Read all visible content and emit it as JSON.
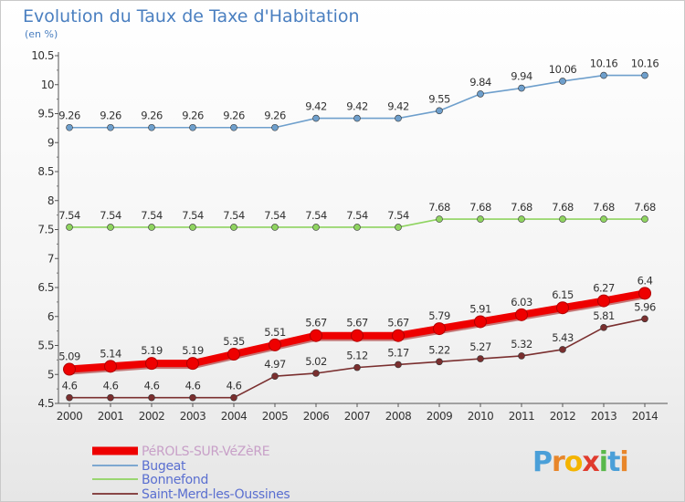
{
  "title": "Evolution du Taux de Taxe d'Habitation",
  "subtitle": "(en %)",
  "brand": {
    "letters": [
      "P",
      "r",
      "o",
      "x",
      "i",
      "t",
      "i"
    ],
    "colors": [
      "#4a9fd8",
      "#e8862a",
      "#f4b400",
      "#e03b2e",
      "#59b84a",
      "#4a9fd8",
      "#e8862a"
    ]
  },
  "chart_data": {
    "type": "line",
    "x": [
      "2000",
      "2001",
      "2002",
      "2003",
      "2004",
      "2005",
      "2006",
      "2007",
      "2008",
      "2009",
      "2010",
      "2011",
      "2012",
      "2013",
      "2014"
    ],
    "ylim": [
      4.5,
      10.5
    ],
    "yticks": [
      "4.5",
      "5",
      "5.5",
      "6",
      "6.5",
      "7",
      "7.5",
      "8",
      "8.5",
      "9",
      "9.5",
      "10",
      "10.5"
    ],
    "grid": false,
    "legend_position": "bottom-left",
    "series": [
      {
        "name": "PéROLS-SUR-VéZèRE",
        "color": "#ee0000",
        "values": [
          5.09,
          5.14,
          5.19,
          5.19,
          5.35,
          5.51,
          5.67,
          5.67,
          5.67,
          5.79,
          5.91,
          6.03,
          6.15,
          6.27,
          6.4
        ],
        "labels": [
          "5.09",
          "5.14",
          "5.19",
          "5.19",
          "5.35",
          "5.51",
          "5.67",
          "5.67",
          "5.67",
          "5.79",
          "5.91",
          "6.03",
          "6.15",
          "6.27",
          "6.4"
        ]
      },
      {
        "name": "Bugeat",
        "color": "#6e9fcc",
        "values": [
          9.26,
          9.26,
          9.26,
          9.26,
          9.26,
          9.26,
          9.42,
          9.42,
          9.42,
          9.55,
          9.84,
          9.94,
          10.06,
          10.16,
          10.16
        ],
        "labels": [
          "9.26",
          "9.26",
          "9.26",
          "9.26",
          "9.26",
          "9.26",
          "9.42",
          "9.42",
          "9.42",
          "9.55",
          "9.84",
          "9.94",
          "10.06",
          "10.16",
          "10.16"
        ]
      },
      {
        "name": "Bonnefond",
        "color": "#8fd460",
        "values": [
          7.54,
          7.54,
          7.54,
          7.54,
          7.54,
          7.54,
          7.54,
          7.54,
          7.54,
          7.68,
          7.68,
          7.68,
          7.68,
          7.68,
          7.68
        ],
        "labels": [
          "7.54",
          "7.54",
          "7.54",
          "7.54",
          "7.54",
          "7.54",
          "7.54",
          "7.54",
          "7.54",
          "7.68",
          "7.68",
          "7.68",
          "7.68",
          "7.68",
          "7.68"
        ]
      },
      {
        "name": "Saint-Merd-les-Oussines",
        "color": "#7a2f2f",
        "values": [
          4.6,
          4.6,
          4.6,
          4.6,
          4.6,
          4.97,
          5.02,
          5.12,
          5.17,
          5.22,
          5.27,
          5.32,
          5.43,
          5.81,
          5.96
        ],
        "labels": [
          "4.6",
          "4.6",
          "4.6",
          "4.6",
          "4.6",
          "4.97",
          "5.02",
          "5.12",
          "5.17",
          "5.22",
          "5.27",
          "5.32",
          "5.43",
          "5.81",
          "5.96"
        ]
      }
    ]
  }
}
